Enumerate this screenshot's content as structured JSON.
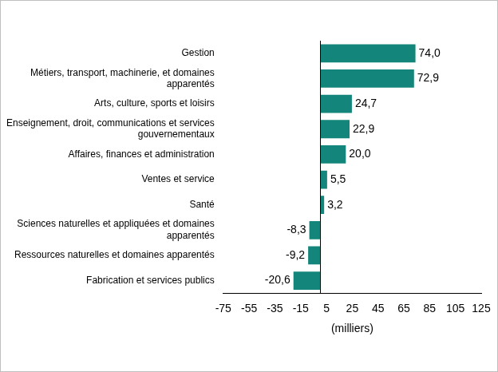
{
  "chart_data": {
    "type": "bar",
    "orientation": "horizontal",
    "categories": [
      "Gestion",
      "Métiers, transport, machinerie, et domaines apparentés",
      "Arts, culture, sports et loisirs",
      "Enseignement, droit, communications et services gouvernementaux",
      "Affaires, finances et administration",
      "Ventes et service",
      "Santé",
      "Sciences naturelles et appliquées et domaines apparentés",
      "Ressources naturelles et domaines apparentés",
      "Fabrication et services publics"
    ],
    "values": [
      74.0,
      72.9,
      24.7,
      22.9,
      20.0,
      5.5,
      3.2,
      -8.3,
      -9.2,
      -20.6
    ],
    "value_labels": [
      "74,0",
      "72,9",
      "24,7",
      "22,9",
      "20,0",
      "5,5",
      "3,2",
      "-8,3",
      "-9,2",
      "-20,6"
    ],
    "color": "#13857a",
    "x_label": "(milliers)",
    "xlim": [
      -75,
      125
    ],
    "xticks": [
      -75,
      -55,
      -35,
      -15,
      5,
      25,
      45,
      65,
      85,
      105,
      125
    ],
    "grid": false,
    "data_labels": true
  }
}
